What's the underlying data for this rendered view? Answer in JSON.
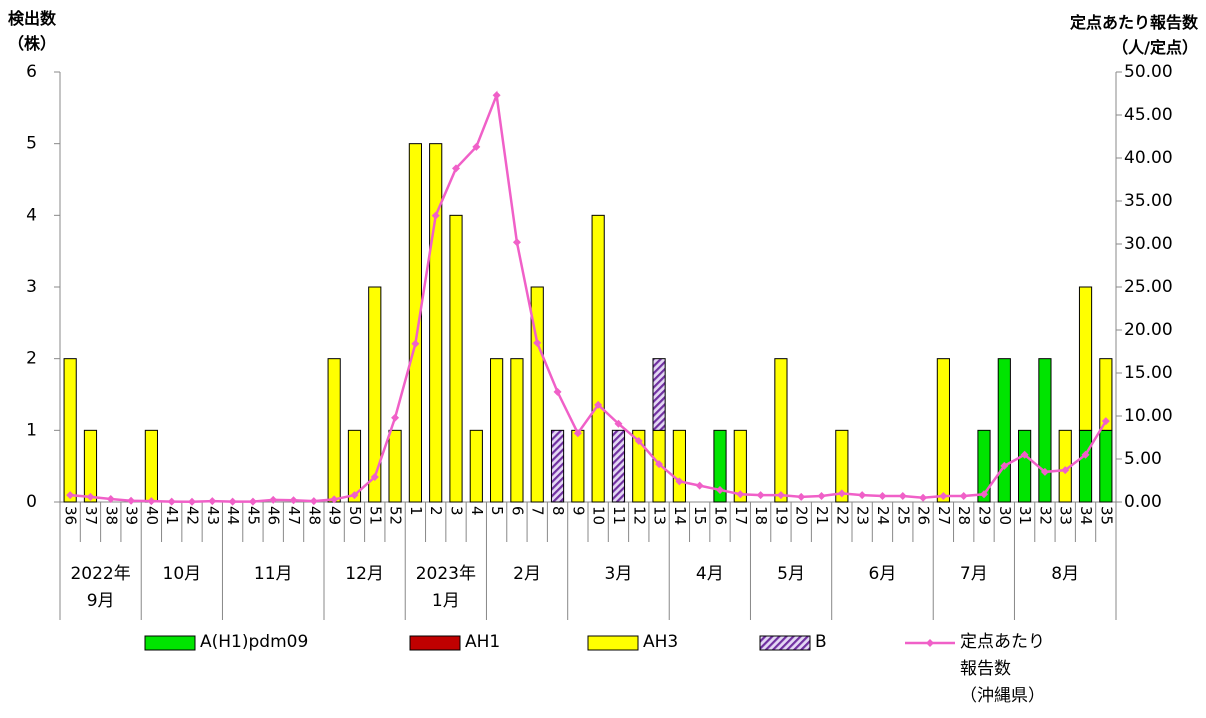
{
  "chart_data": {
    "type": "bar",
    "stacked": true,
    "y_label": "検出数\n（株）",
    "y2_label": "定点あたり報告数\n（人/定点）",
    "categories": [
      "36",
      "37",
      "38",
      "39",
      "40",
      "41",
      "42",
      "43",
      "44",
      "45",
      "46",
      "47",
      "48",
      "49",
      "50",
      "51",
      "52",
      "1",
      "2",
      "3",
      "4",
      "5",
      "6",
      "7",
      "8",
      "9",
      "10",
      "11",
      "12",
      "13",
      "14",
      "15",
      "16",
      "17",
      "18",
      "19",
      "20",
      "21",
      "22",
      "23",
      "24",
      "25",
      "26",
      "27",
      "28",
      "29",
      "30",
      "31",
      "32",
      "33",
      "34",
      "35"
    ],
    "category_groups": [
      "2022年\n9月",
      null,
      null,
      null,
      "10月",
      null,
      null,
      null,
      "11月",
      null,
      null,
      null,
      null,
      "12月",
      null,
      null,
      null,
      "2023年\n1月",
      null,
      null,
      null,
      "2月",
      null,
      null,
      null,
      "3月",
      null,
      null,
      null,
      null,
      "4月",
      null,
      null,
      null,
      "5月",
      null,
      null,
      null,
      "6月",
      null,
      null,
      null,
      null,
      "7月",
      null,
      null,
      null,
      "8月",
      null,
      null,
      null,
      null
    ],
    "series": [
      {
        "name": "A(H1)pdm09",
        "type": "bar",
        "color": "#00e400",
        "values": [
          0,
          0,
          0,
          0,
          0,
          0,
          0,
          0,
          0,
          0,
          0,
          0,
          0,
          0,
          0,
          0,
          0,
          0,
          0,
          0,
          0,
          0,
          0,
          0,
          0,
          0,
          0,
          0,
          0,
          0,
          0,
          0,
          1,
          0,
          0,
          0,
          0,
          0,
          0,
          0,
          0,
          0,
          0,
          0,
          0,
          1,
          2,
          1,
          2,
          0,
          1,
          1
        ]
      },
      {
        "name": "AH1",
        "type": "bar",
        "color": "#c00000",
        "values": [
          0,
          0,
          0,
          0,
          0,
          0,
          0,
          0,
          0,
          0,
          0,
          0,
          0,
          0,
          0,
          0,
          0,
          0,
          0,
          0,
          0,
          0,
          0,
          0,
          0,
          0,
          0,
          0,
          0,
          0,
          0,
          0,
          0,
          0,
          0,
          0,
          0,
          0,
          0,
          0,
          0,
          0,
          0,
          0,
          0,
          0,
          0,
          0,
          0,
          0,
          0,
          0
        ]
      },
      {
        "name": "AH3",
        "type": "bar",
        "color": "#ffff00",
        "values": [
          2,
          1,
          0,
          0,
          1,
          0,
          0,
          0,
          0,
          0,
          0,
          0,
          0,
          2,
          1,
          3,
          1,
          5,
          5,
          4,
          1,
          2,
          2,
          3,
          0,
          1,
          4,
          0,
          1,
          1,
          1,
          0,
          0,
          1,
          0,
          2,
          0,
          0,
          1,
          0,
          0,
          0,
          0,
          2,
          0,
          0,
          0,
          0,
          0,
          1,
          2,
          1
        ]
      },
      {
        "name": "B",
        "type": "bar",
        "color": "#7030a0",
        "hatch": true,
        "values": [
          0,
          0,
          0,
          0,
          0,
          0,
          0,
          0,
          0,
          0,
          0,
          0,
          0,
          0,
          0,
          0,
          0,
          0,
          0,
          0,
          0,
          0,
          0,
          0,
          1,
          0,
          0,
          1,
          0,
          1,
          0,
          0,
          0,
          0,
          0,
          0,
          0,
          0,
          0,
          0,
          0,
          0,
          0,
          0,
          0,
          0,
          0,
          0,
          0,
          0,
          0,
          0
        ]
      },
      {
        "name": "定点あたり\n報告数\n（沖縄県）",
        "type": "line",
        "axis": "y2",
        "color": "#f060c8",
        "values": [
          0.8,
          0.6,
          0.35,
          0.15,
          0.1,
          0.05,
          0.03,
          0.1,
          0.05,
          0.05,
          0.25,
          0.2,
          0.1,
          0.3,
          0.8,
          2.9,
          9.8,
          18.4,
          33.3,
          38.8,
          41.3,
          47.3,
          30.2,
          18.5,
          12.8,
          8.0,
          11.3,
          9.1,
          7.1,
          4.4,
          2.4,
          1.9,
          1.4,
          0.9,
          0.8,
          0.8,
          0.6,
          0.7,
          1.0,
          0.8,
          0.7,
          0.7,
          0.5,
          0.7,
          0.7,
          0.9,
          4.2,
          5.5,
          3.5,
          3.7,
          5.5,
          9.4
        ]
      }
    ],
    "ylim": [
      0,
      6
    ],
    "yticks": [
      0,
      1,
      2,
      3,
      4,
      5,
      6
    ],
    "y2lim": [
      0,
      50
    ],
    "y2ticks": [
      {
        "value": 0,
        "label": "0.00"
      },
      {
        "value": 5,
        "label": "5.00"
      },
      {
        "value": 10,
        "label": "10.00"
      },
      {
        "value": 15,
        "label": "15.00"
      },
      {
        "value": 20,
        "label": "20.00"
      },
      {
        "value": 25,
        "label": "25.00"
      },
      {
        "value": 30,
        "label": "30.00"
      },
      {
        "value": 35,
        "label": "35.00"
      },
      {
        "value": 40,
        "label": "40.00"
      },
      {
        "value": 45,
        "label": "45.00"
      },
      {
        "value": 50,
        "label": "50.00"
      }
    ],
    "legend": "bottom"
  }
}
